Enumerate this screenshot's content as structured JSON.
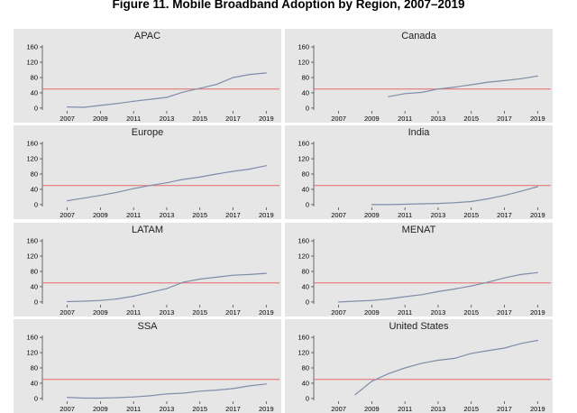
{
  "figure": {
    "title": "Figure 11. Mobile Broadband Adoption by Region, 2007–2019"
  },
  "chart_data": {
    "type": "line",
    "layout": "small-multiples",
    "xlim": [
      2005.5,
      2019.8
    ],
    "ylim": [
      -5,
      165
    ],
    "x_ticks": [
      2007,
      2009,
      2011,
      2013,
      2015,
      2017,
      2019
    ],
    "y_ticks": [
      0,
      40,
      80,
      120,
      160
    ],
    "reference_line": {
      "y": 50,
      "color": "#e36a6a"
    },
    "line_color": "#7f8ea8",
    "panel_background": "#e6e6e6",
    "panels": [
      {
        "title": "APAC",
        "x": [
          2007,
          2008,
          2009,
          2010,
          2011,
          2012,
          2013,
          2014,
          2015,
          2016,
          2017,
          2018,
          2019
        ],
        "y": [
          3,
          2,
          7,
          12,
          18,
          23,
          28,
          42,
          52,
          62,
          80,
          88,
          92
        ]
      },
      {
        "title": "Canada",
        "x": [
          2010,
          2011,
          2012,
          2013,
          2014,
          2015,
          2016,
          2017,
          2018,
          2019
        ],
        "y": [
          30,
          38,
          41,
          50,
          55,
          61,
          68,
          72,
          77,
          84
        ]
      },
      {
        "title": "Europe",
        "x": [
          2007,
          2008,
          2009,
          2010,
          2011,
          2012,
          2013,
          2014,
          2015,
          2016,
          2017,
          2018,
          2019
        ],
        "y": [
          10,
          17,
          24,
          32,
          42,
          50,
          57,
          66,
          72,
          80,
          87,
          93,
          102
        ]
      },
      {
        "title": "India",
        "x": [
          2009,
          2010,
          2011,
          2012,
          2013,
          2014,
          2015,
          2016,
          2017,
          2018,
          2019
        ],
        "y": [
          0,
          0,
          1,
          2,
          3,
          5,
          8,
          15,
          24,
          35,
          47
        ]
      },
      {
        "title": "LATAM",
        "x": [
          2007,
          2008,
          2009,
          2010,
          2011,
          2012,
          2013,
          2014,
          2015,
          2016,
          2017,
          2018,
          2019
        ],
        "y": [
          1,
          2,
          4,
          8,
          15,
          25,
          35,
          52,
          60,
          65,
          70,
          72,
          75
        ]
      },
      {
        "title": "MENAT",
        "x": [
          2007,
          2008,
          2009,
          2010,
          2011,
          2012,
          2013,
          2014,
          2015,
          2016,
          2017,
          2018,
          2019
        ],
        "y": [
          0,
          2,
          4,
          8,
          14,
          19,
          27,
          34,
          42,
          52,
          63,
          72,
          77
        ]
      },
      {
        "title": "SSA",
        "x": [
          2007,
          2008,
          2009,
          2010,
          2011,
          2012,
          2013,
          2014,
          2015,
          2016,
          2017,
          2018,
          2019
        ],
        "y": [
          3,
          1,
          1,
          2,
          4,
          7,
          12,
          14,
          19,
          22,
          26,
          33,
          38
        ]
      },
      {
        "title": "United States",
        "x": [
          2008,
          2009,
          2010,
          2011,
          2012,
          2013,
          2014,
          2015,
          2016,
          2017,
          2018,
          2019
        ],
        "y": [
          10,
          45,
          65,
          80,
          92,
          100,
          105,
          118,
          125,
          132,
          144,
          152
        ]
      }
    ]
  }
}
